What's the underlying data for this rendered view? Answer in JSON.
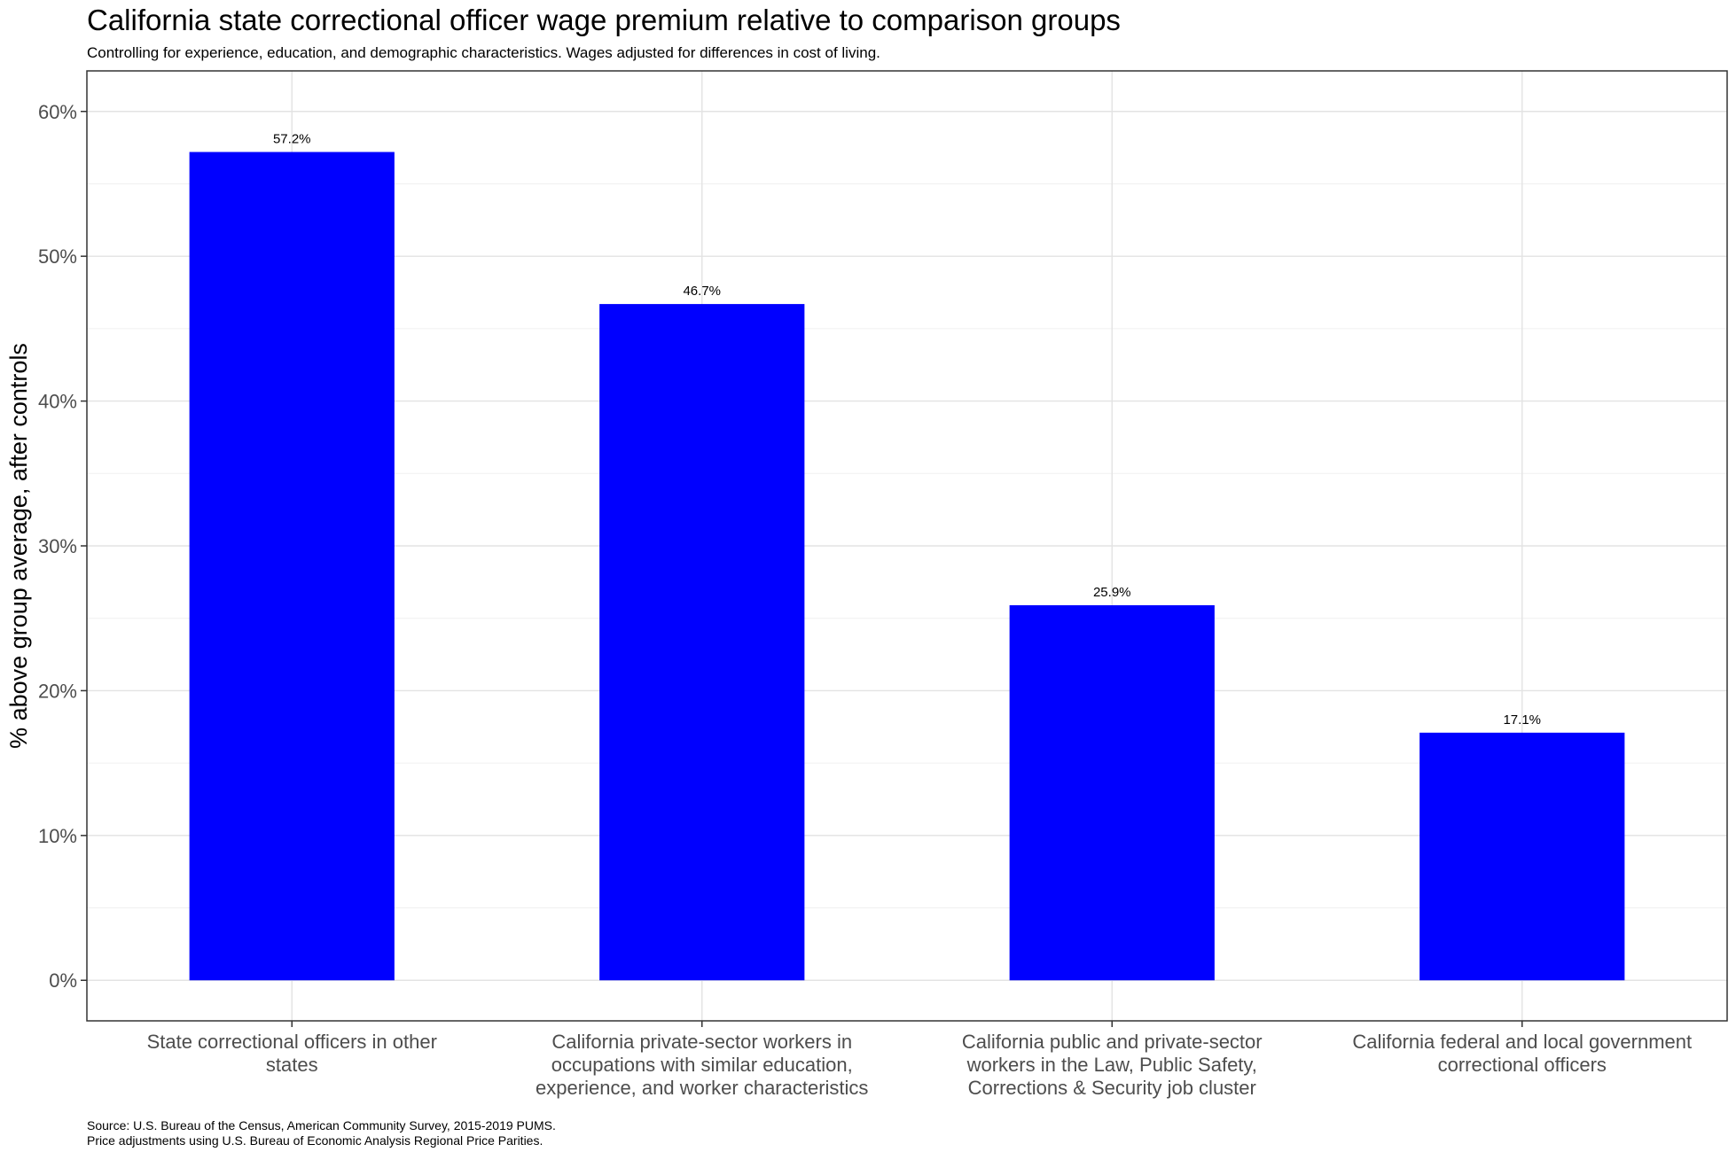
{
  "chart_data": {
    "type": "bar",
    "title": "California state correctional officer wage premium relative to comparison groups",
    "subtitle": "Controlling for experience, education, and demographic characteristics. Wages adjusted for differences in cost of living.",
    "xlabel": "",
    "ylabel": "% above group average, after controls",
    "ylim": [
      -2.8,
      62.8
    ],
    "yticks": [
      0,
      10,
      20,
      30,
      40,
      50,
      60
    ],
    "ytick_labels": [
      "0%",
      "10%",
      "20%",
      "30%",
      "40%",
      "50%",
      "60%"
    ],
    "categories": [
      [
        "State correctional officers in other",
        "states"
      ],
      [
        "California private-sector workers in",
        "occupations with similar education,",
        "experience, and worker characteristics"
      ],
      [
        "California public and private-sector",
        "workers in the Law, Public Safety,",
        "Corrections & Security job cluster"
      ],
      [
        "California federal and local government",
        "correctional officers"
      ]
    ],
    "values": [
      57.2,
      46.7,
      25.9,
      17.1
    ],
    "data_labels": [
      "57.2%",
      "46.7%",
      "25.9%",
      "17.1%"
    ],
    "bar_color": "#0000ff",
    "grid": true,
    "legend": "none"
  },
  "source": {
    "line1": "Source: U.S. Bureau of the Census, American Community Survey, 2015-2019 PUMS.",
    "line2": "Price adjustments using U.S. Bureau of Economic Analysis Regional Price Parities."
  }
}
